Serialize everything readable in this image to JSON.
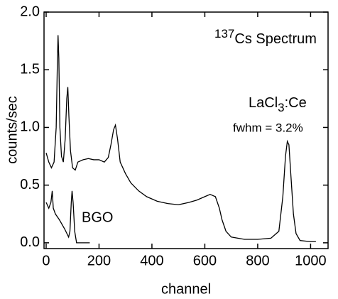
{
  "chart_data": {
    "type": "line",
    "xlabel": "channel",
    "ylabel": "counts/sec",
    "annotations": [
      {
        "sup": "137",
        "text": "Cs Spectrum"
      },
      {
        "text": "LaCl",
        "sub": "3",
        "rest": ":Ce"
      },
      {
        "text": "fwhm = 3.2%"
      },
      {
        "text": "BGO"
      }
    ],
    "xlim": [
      -8,
      1066
    ],
    "ylim": [
      -0.05,
      2.0
    ],
    "xticks": [
      0,
      200,
      400,
      600,
      800,
      1000
    ],
    "yticks": [
      {
        "value": 0,
        "label": "0.0"
      },
      {
        "value": 0.5,
        "label": "0.5"
      },
      {
        "value": 1,
        "label": "1.0"
      },
      {
        "value": 1.5,
        "label": "1.5"
      },
      {
        "value": 2,
        "label": "2.0"
      }
    ],
    "series": [
      {
        "name": "LaCl3:Ce",
        "color": "#000000",
        "x": [
          0,
          10,
          20,
          30,
          38,
          42,
          45,
          48,
          52,
          58,
          65,
          72,
          78,
          82,
          86,
          92,
          100,
          110,
          120,
          140,
          160,
          180,
          200,
          220,
          235,
          245,
          255,
          262,
          270,
          280,
          300,
          320,
          350,
          380,
          420,
          460,
          500,
          540,
          570,
          600,
          620,
          640,
          655,
          665,
          680,
          700,
          750,
          800,
          850,
          880,
          895,
          905,
          912,
          918,
          925,
          935,
          945,
          960,
          1000,
          1020
        ],
        "values": [
          0.78,
          0.7,
          0.65,
          0.7,
          1.0,
          1.5,
          1.8,
          1.6,
          1.0,
          0.75,
          0.7,
          0.9,
          1.25,
          1.35,
          1.1,
          0.8,
          0.65,
          0.63,
          0.7,
          0.72,
          0.73,
          0.72,
          0.72,
          0.7,
          0.74,
          0.85,
          0.98,
          1.02,
          0.9,
          0.7,
          0.6,
          0.52,
          0.45,
          0.4,
          0.36,
          0.34,
          0.33,
          0.35,
          0.37,
          0.4,
          0.42,
          0.4,
          0.3,
          0.2,
          0.1,
          0.05,
          0.03,
          0.03,
          0.04,
          0.1,
          0.4,
          0.75,
          0.88,
          0.85,
          0.6,
          0.25,
          0.08,
          0.02,
          0.01,
          0.01
        ]
      },
      {
        "name": "BGO",
        "color": "#000000",
        "x": [
          0,
          10,
          18,
          23,
          27,
          35,
          50,
          70,
          85,
          90,
          95,
          98,
          102,
          108,
          115,
          140,
          165
        ],
        "values": [
          0.35,
          0.3,
          0.35,
          0.45,
          0.3,
          0.25,
          0.2,
          0.12,
          0.05,
          0.1,
          0.35,
          0.45,
          0.35,
          0.1,
          0.0,
          0.0,
          0.0
        ]
      }
    ]
  }
}
